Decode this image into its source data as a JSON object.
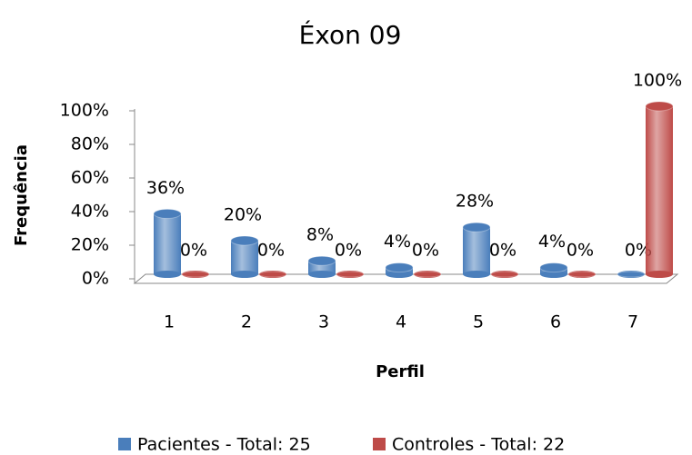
{
  "chart_data": {
    "type": "bar",
    "title": "Éxon 09",
    "x_label": "Perfil",
    "y_label": "Frequência",
    "categories": [
      "1",
      "2",
      "3",
      "4",
      "5",
      "6",
      "7"
    ],
    "series": [
      {
        "name": "Pacientes - Total: 25",
        "color": "#4a7ebb",
        "values": [
          36,
          20,
          8,
          4,
          28,
          4,
          0
        ],
        "value_labels": [
          "36%",
          "20%",
          "8%",
          "4%",
          "28%",
          "4%",
          "0%"
        ]
      },
      {
        "name": "Controles - Total: 22",
        "color": "#be4b48",
        "values": [
          0,
          0,
          0,
          0,
          0,
          0,
          100
        ],
        "value_labels": [
          "0%",
          "0%",
          "0%",
          "0%",
          "0%",
          "0%",
          "100%"
        ]
      }
    ],
    "ylim": [
      0,
      100
    ],
    "yticks": [
      {
        "value": 0,
        "label": "0%"
      },
      {
        "value": 20,
        "label": "20%"
      },
      {
        "value": 40,
        "label": "40%"
      },
      {
        "value": 60,
        "label": "60%"
      },
      {
        "value": 80,
        "label": "80%"
      },
      {
        "value": 100,
        "label": "100%"
      }
    ],
    "grid": false,
    "legend": "bottom"
  }
}
